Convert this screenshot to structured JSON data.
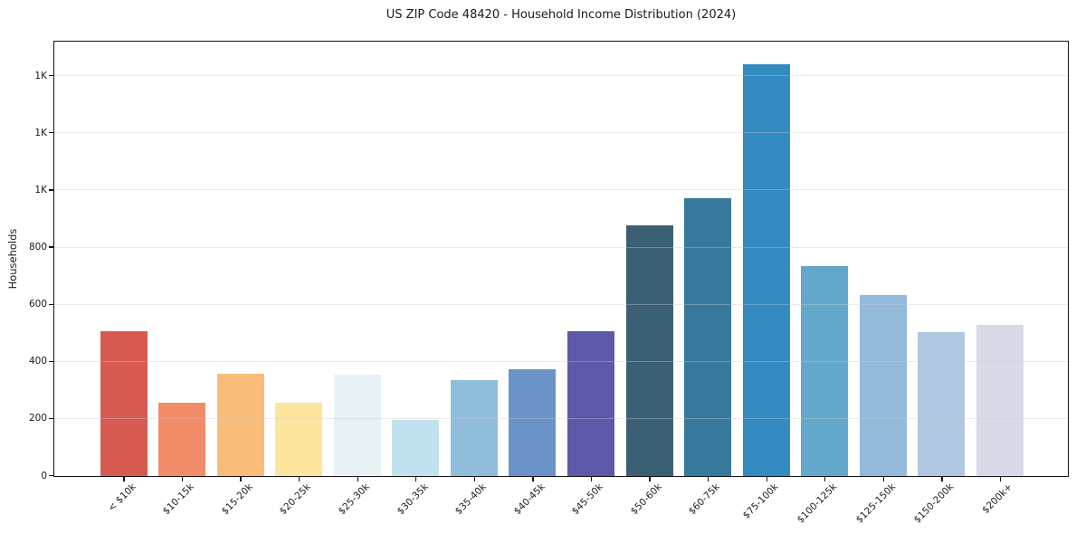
{
  "figure": {
    "background_color": "#ffffff"
  },
  "chart_data": {
    "type": "bar",
    "title": "US ZIP Code 48420 - Household Income Distribution (2024)",
    "xlabel": "",
    "ylabel": "Households",
    "categories": [
      "< $10k",
      "$10-15k",
      "$15-20k",
      "$20-25k",
      "$25-30k",
      "$30-35k",
      "$35-40k",
      "$40-45k",
      "$45-50k",
      "$50-60k",
      "$60-75k",
      "$75-100k",
      "$100-125k",
      "$125-150k",
      "$150-200k",
      "$200k+"
    ],
    "values": [
      507,
      258,
      359,
      258,
      355,
      196,
      336,
      375,
      506,
      879,
      974,
      1441,
      734,
      635,
      503,
      529
    ],
    "bar_colors": [
      "#d65a50",
      "#f28b67",
      "#fabd79",
      "#fde59d",
      "#e7f2f7",
      "#c1e1ee",
      "#91bddc",
      "#6b93c7",
      "#5d59a8",
      "#3c6073",
      "#36799d",
      "#348bc0",
      "#63a8ca",
      "#93badb",
      "#b0c7e1",
      "#d7d9e7"
    ],
    "ylim": [
      0,
      1518
    ],
    "yticks": [
      {
        "value": 0,
        "label": "0"
      },
      {
        "value": 200,
        "label": "200"
      },
      {
        "value": 400,
        "label": "400"
      },
      {
        "value": 600,
        "label": "600"
      },
      {
        "value": 800,
        "label": "800"
      },
      {
        "value": 1000,
        "label": "1K"
      },
      {
        "value": 1200,
        "label": "1K"
      },
      {
        "value": 1400,
        "label": "1K"
      }
    ],
    "grid": true,
    "grid_color": "#ededf0",
    "axis_color": "#15151a",
    "legend": false,
    "xtick_rotation_deg": 45
  }
}
